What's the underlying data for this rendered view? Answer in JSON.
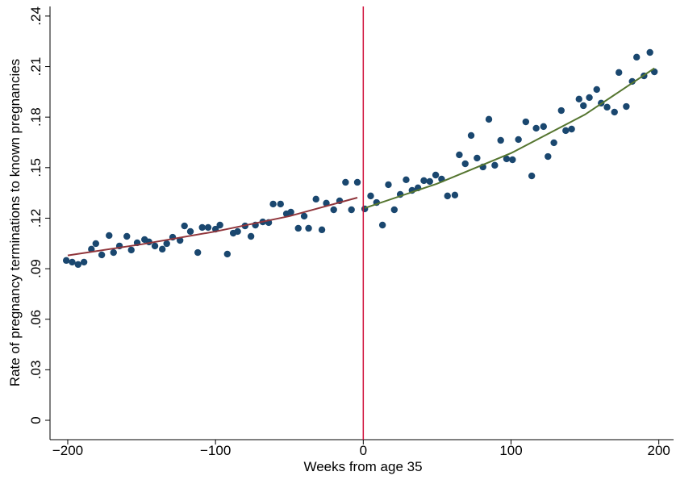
{
  "chart_data": {
    "type": "scatter",
    "xlabel": "Weeks from age 35",
    "ylabel": "Rate of pregnancy terminations to known pregnancies",
    "xlim": [
      -212,
      210
    ],
    "ylim": [
      -0.0115,
      0.2457
    ],
    "xticks": [
      {
        "value": -200,
        "label": "−200"
      },
      {
        "value": -100,
        "label": "−100"
      },
      0,
      100,
      200
    ],
    "yticks": [
      0,
      {
        "value": 0.03,
        "label": ".03"
      },
      {
        "value": 0.06,
        "label": ".06"
      },
      {
        "value": 0.09,
        "label": ".09"
      },
      {
        "value": 0.12,
        "label": ".12"
      },
      {
        "value": 0.15,
        "label": ".15"
      },
      {
        "value": 0.18,
        "label": ".18"
      },
      {
        "value": 0.21,
        "label": ".21"
      },
      {
        "value": 0.24,
        "label": ".24"
      }
    ],
    "vline": 0,
    "vline_color": "#d0103a",
    "series": [
      {
        "type": "scatter",
        "color": "#1a476f",
        "x": [
          -201,
          -197,
          -193,
          -189,
          -184,
          -181,
          -177,
          -172,
          -169,
          -165,
          -160,
          -157,
          -153,
          -148,
          -145,
          -141,
          -136,
          -133,
          -129,
          -124,
          -121,
          -117,
          -112,
          -109,
          -105,
          -100,
          -97,
          -92,
          -88,
          -85,
          -80,
          -76,
          -73,
          -68,
          -64,
          -61,
          -56,
          -52,
          -49,
          -44,
          -40,
          -37,
          -32,
          -28,
          -25,
          -20,
          -16,
          -12,
          -8,
          -4,
          1,
          5,
          9,
          13,
          17,
          21,
          25,
          29,
          33,
          37,
          41,
          45,
          49,
          53,
          57,
          62,
          65,
          69,
          73,
          77,
          81,
          85,
          89,
          93,
          97,
          101,
          105,
          110,
          114,
          117,
          122,
          125,
          129,
          134,
          137,
          141,
          146,
          149,
          153,
          158,
          161,
          165,
          170,
          173,
          178,
          182,
          185,
          190,
          194,
          197
        ],
        "values": [
          0.0949,
          0.0939,
          0.0925,
          0.0939,
          0.1016,
          0.1049,
          0.0982,
          0.1097,
          0.0996,
          0.1035,
          0.1092,
          0.1011,
          0.1054,
          0.1073,
          0.1059,
          0.1035,
          0.1016,
          0.1049,
          0.1087,
          0.1068,
          0.1154,
          0.1121,
          0.0996,
          0.1145,
          0.1145,
          0.1135,
          0.1159,
          0.0987,
          0.1111,
          0.1121,
          0.1154,
          0.1092,
          0.1159,
          0.1178,
          0.1174,
          0.1284,
          0.1284,
          0.1226,
          0.1236,
          0.114,
          0.1212,
          0.114,
          0.1313,
          0.1131,
          0.1289,
          0.125,
          0.1303,
          0.1413,
          0.125,
          0.1413,
          0.1255,
          0.1332,
          0.1293,
          0.1159,
          0.1399,
          0.125,
          0.1341,
          0.1428,
          0.1365,
          0.138,
          0.1423,
          0.1418,
          0.1456,
          0.1432,
          0.1332,
          0.1337,
          0.1576,
          0.1523,
          0.1691,
          0.1557,
          0.1504,
          0.1787,
          0.1514,
          0.1662,
          0.1552,
          0.1547,
          0.1667,
          0.1772,
          0.1451,
          0.1734,
          0.1744,
          0.1566,
          0.1648,
          0.1839,
          0.172,
          0.1729,
          0.1907,
          0.1868,
          0.1916,
          0.1964,
          0.1883,
          0.1859,
          0.183,
          0.2065,
          0.1863,
          0.2012,
          0.2156,
          0.2045,
          0.2184,
          0.2069
        ]
      },
      {
        "type": "line",
        "color": "#90353b",
        "x": [
          -200,
          -150,
          -100,
          -50,
          -4
        ],
        "values": [
          0.0979,
          0.1045,
          0.1121,
          0.1212,
          0.1322
        ]
      },
      {
        "type": "line",
        "color": "#55752f",
        "x": [
          1,
          50,
          100,
          150,
          197
        ],
        "values": [
          0.126,
          0.1405,
          0.1586,
          0.1815,
          0.209
        ]
      }
    ]
  }
}
